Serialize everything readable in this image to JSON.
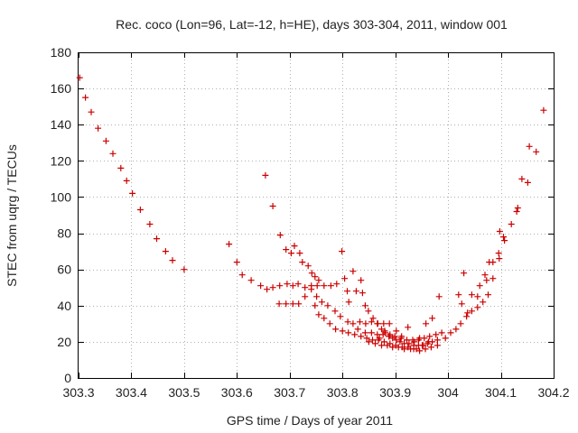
{
  "chart_data": {
    "type": "scatter",
    "title": "Rec. coco (Lon=96, Lat=-12, h=HE), days 303-304, 2011, window 001",
    "xlabel": "GPS time / Days of year 2011",
    "ylabel": "STEC from uqrg / TECUs",
    "xlim": [
      303.3,
      304.2
    ],
    "ylim": [
      0,
      180
    ],
    "xticks": [
      303.3,
      303.4,
      303.5,
      303.6,
      303.7,
      303.8,
      303.9,
      304.0,
      304.1,
      304.2
    ],
    "xtick_labels": [
      "303.3",
      "303.4",
      "303.5",
      "303.6",
      "303.7",
      "303.8",
      "303.9",
      "304",
      "304.1",
      "304.2"
    ],
    "yticks": [
      0,
      20,
      40,
      60,
      80,
      100,
      120,
      140,
      160,
      180
    ],
    "ytick_labels": [
      "0",
      "20",
      "40",
      "60",
      "80",
      "100",
      "120",
      "140",
      "160",
      "180"
    ],
    "grid": true,
    "marker": "+",
    "color": "#cc0000",
    "series": [
      {
        "name": "STEC",
        "points": [
          [
            303.302,
            166
          ],
          [
            303.313,
            155
          ],
          [
            303.324,
            147
          ],
          [
            303.337,
            138
          ],
          [
            303.352,
            131
          ],
          [
            303.365,
            124
          ],
          [
            303.38,
            116
          ],
          [
            303.391,
            109
          ],
          [
            303.402,
            102
          ],
          [
            303.417,
            93
          ],
          [
            303.435,
            85
          ],
          [
            303.448,
            77
          ],
          [
            303.465,
            70
          ],
          [
            303.478,
            65
          ],
          [
            303.5,
            60
          ],
          [
            303.585,
            74
          ],
          [
            303.6,
            64
          ],
          [
            303.61,
            57
          ],
          [
            303.627,
            54
          ],
          [
            303.645,
            51
          ],
          [
            303.657,
            49
          ],
          [
            303.668,
            50
          ],
          [
            303.681,
            51
          ],
          [
            303.695,
            52
          ],
          [
            303.706,
            51
          ],
          [
            303.716,
            52
          ],
          [
            303.729,
            50
          ],
          [
            303.741,
            51
          ],
          [
            303.752,
            51
          ],
          [
            303.765,
            51
          ],
          [
            303.778,
            51
          ],
          [
            303.789,
            52
          ],
          [
            303.654,
            112
          ],
          [
            303.668,
            95
          ],
          [
            303.682,
            79
          ],
          [
            303.693,
            71
          ],
          [
            303.703,
            69
          ],
          [
            303.709,
            73
          ],
          [
            303.719,
            69
          ],
          [
            303.724,
            64
          ],
          [
            303.735,
            62
          ],
          [
            303.742,
            58
          ],
          [
            303.748,
            56
          ],
          [
            303.755,
            54
          ],
          [
            303.68,
            41
          ],
          [
            303.693,
            41
          ],
          [
            303.706,
            41
          ],
          [
            303.717,
            41
          ],
          [
            303.729,
            45
          ],
          [
            303.741,
            49
          ],
          [
            303.751,
            45
          ],
          [
            303.761,
            42
          ],
          [
            303.772,
            40
          ],
          [
            303.786,
            37
          ],
          [
            303.796,
            34
          ],
          [
            303.81,
            31
          ],
          [
            303.82,
            30
          ],
          [
            303.833,
            31
          ],
          [
            303.844,
            30
          ],
          [
            303.855,
            31
          ],
          [
            303.867,
            30
          ],
          [
            303.878,
            30
          ],
          [
            303.889,
            30
          ],
          [
            303.748,
            40
          ],
          [
            303.755,
            35
          ],
          [
            303.765,
            33
          ],
          [
            303.776,
            30
          ],
          [
            303.787,
            27
          ],
          [
            303.8,
            26
          ],
          [
            303.811,
            25
          ],
          [
            303.823,
            24
          ],
          [
            303.835,
            23
          ],
          [
            303.846,
            22
          ],
          [
            303.857,
            21
          ],
          [
            303.868,
            21
          ],
          [
            303.879,
            20
          ],
          [
            303.89,
            19
          ],
          [
            303.901,
            18
          ],
          [
            303.913,
            17
          ],
          [
            303.924,
            17
          ],
          [
            303.935,
            16
          ],
          [
            303.946,
            15
          ],
          [
            303.957,
            16
          ],
          [
            303.968,
            17
          ],
          [
            303.98,
            18
          ],
          [
            303.799,
            70
          ],
          [
            303.804,
            55
          ],
          [
            303.809,
            48
          ],
          [
            303.812,
            42
          ],
          [
            303.82,
            59
          ],
          [
            303.826,
            48
          ],
          [
            303.835,
            54
          ],
          [
            303.838,
            47
          ],
          [
            303.843,
            40
          ],
          [
            303.849,
            37
          ],
          [
            303.858,
            33
          ],
          [
            303.866,
            30
          ],
          [
            303.874,
            27
          ],
          [
            303.881,
            25
          ],
          [
            303.888,
            23
          ],
          [
            303.895,
            22
          ],
          [
            303.902,
            21
          ],
          [
            303.909,
            20
          ],
          [
            303.917,
            19
          ],
          [
            303.926,
            19
          ],
          [
            303.935,
            18
          ],
          [
            303.944,
            18
          ],
          [
            303.953,
            18
          ],
          [
            303.961,
            19
          ],
          [
            303.97,
            20
          ],
          [
            303.98,
            21
          ],
          [
            303.829,
            27
          ],
          [
            303.843,
            25
          ],
          [
            303.855,
            25
          ],
          [
            303.866,
            24
          ],
          [
            303.877,
            24
          ],
          [
            303.888,
            23
          ],
          [
            303.899,
            23
          ],
          [
            303.911,
            22
          ],
          [
            303.922,
            21
          ],
          [
            303.933,
            21
          ],
          [
            303.944,
            21
          ],
          [
            303.955,
            22
          ],
          [
            303.965,
            23
          ],
          [
            303.977,
            24
          ],
          [
            303.988,
            25
          ],
          [
            303.874,
            18
          ],
          [
            303.885,
            18
          ],
          [
            303.895,
            17
          ],
          [
            303.906,
            17
          ],
          [
            303.917,
            16
          ],
          [
            303.929,
            16
          ],
          [
            303.94,
            16
          ],
          [
            303.951,
            18
          ],
          [
            303.963,
            20
          ],
          [
            303.85,
            20
          ],
          [
            303.862,
            19
          ],
          [
            303.87,
            22
          ],
          [
            303.88,
            26
          ],
          [
            303.89,
            24
          ],
          [
            303.902,
            26
          ],
          [
            303.912,
            23
          ],
          [
            303.924,
            28
          ],
          [
            303.936,
            20
          ],
          [
            303.946,
            22
          ],
          [
            303.958,
            30
          ],
          [
            303.97,
            33
          ],
          [
            303.983,
            45
          ],
          [
            303.995,
            22
          ],
          [
            304.005,
            25
          ],
          [
            304.015,
            27
          ],
          [
            304.024,
            30
          ],
          [
            304.035,
            34
          ],
          [
            304.045,
            37
          ],
          [
            304.056,
            39
          ],
          [
            304.066,
            42
          ],
          [
            304.076,
            46
          ],
          [
            304.085,
            55
          ],
          [
            304.097,
            66
          ],
          [
            304.105,
            78
          ],
          [
            304.02,
            46
          ],
          [
            304.026,
            41
          ],
          [
            304.03,
            58
          ],
          [
            304.037,
            36
          ],
          [
            304.045,
            46
          ],
          [
            304.056,
            45
          ],
          [
            304.06,
            51
          ],
          [
            304.07,
            57
          ],
          [
            304.073,
            54
          ],
          [
            304.078,
            64
          ],
          [
            304.085,
            64
          ],
          [
            304.096,
            69
          ],
          [
            304.098,
            81
          ],
          [
            304.107,
            76
          ],
          [
            304.12,
            85
          ],
          [
            304.13,
            92
          ],
          [
            304.132,
            94
          ],
          [
            304.14,
            110
          ],
          [
            304.151,
            108
          ],
          [
            304.154,
            128
          ],
          [
            304.167,
            125
          ],
          [
            304.181,
            148
          ]
        ]
      }
    ]
  }
}
